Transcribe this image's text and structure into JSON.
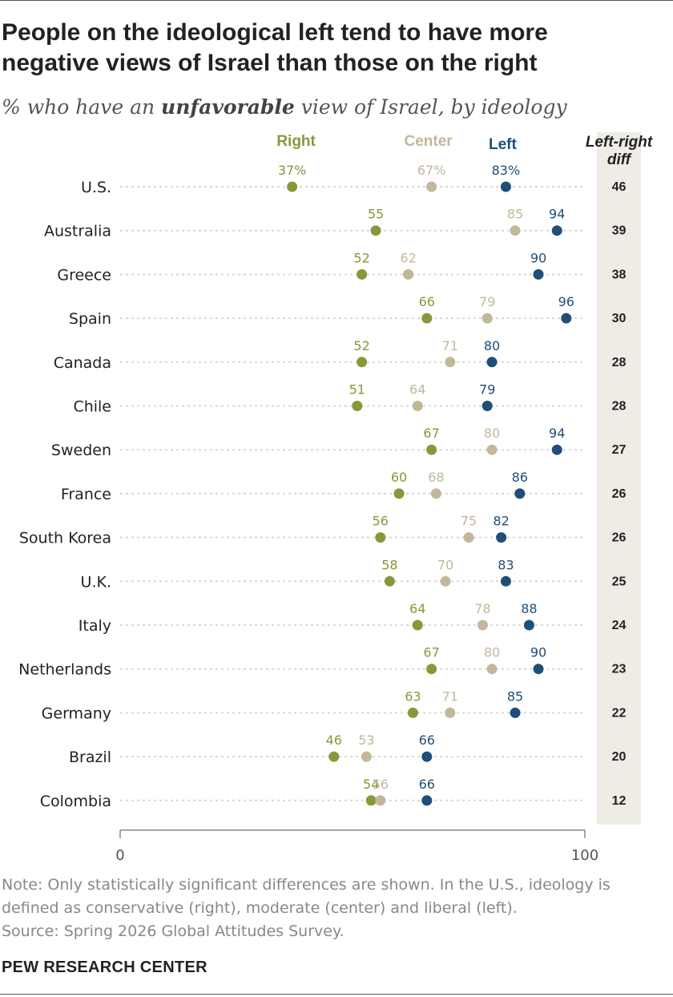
{
  "title": "People on the ideological left tend to have more negative views of Israel than those on the right",
  "subtitle": {
    "prefix": "% who have an",
    "emphasis": "unfavorable",
    "suffix": "view of Israel, by ideology"
  },
  "colors": {
    "right": "#86983a",
    "center": "#c2b79b",
    "left": "#1f4e79",
    "diff_band": "#eeece4",
    "dotted_line": "#d8d8d8",
    "axis": "#888888"
  },
  "chart_data": {
    "type": "dot-plot",
    "series_names": {
      "right": "Right",
      "center": "Center",
      "left": "Left"
    },
    "diff_header": [
      "Left-right",
      "diff"
    ],
    "x_ticks": [
      "0",
      "100"
    ],
    "xlim": [
      0,
      100
    ],
    "rows": [
      {
        "country": "U.S.",
        "right": 37,
        "center": 67,
        "left": 83,
        "diff": 46,
        "pct": true
      },
      {
        "country": "Australia",
        "right": 55,
        "center": 85,
        "left": 94,
        "diff": 39
      },
      {
        "country": "Greece",
        "right": 52,
        "center": 62,
        "left": 90,
        "diff": 38
      },
      {
        "country": "Spain",
        "right": 66,
        "center": 79,
        "left": 96,
        "diff": 30
      },
      {
        "country": "Canada",
        "right": 52,
        "center": 71,
        "left": 80,
        "diff": 28
      },
      {
        "country": "Chile",
        "right": 51,
        "center": 64,
        "left": 79,
        "diff": 28
      },
      {
        "country": "Sweden",
        "right": 67,
        "center": 80,
        "left": 94,
        "diff": 27
      },
      {
        "country": "France",
        "right": 60,
        "center": 68,
        "left": 86,
        "diff": 26
      },
      {
        "country": "South Korea",
        "right": 56,
        "center": 75,
        "left": 82,
        "diff": 26
      },
      {
        "country": "U.K.",
        "right": 58,
        "center": 70,
        "left": 83,
        "diff": 25
      },
      {
        "country": "Italy",
        "right": 64,
        "center": 78,
        "left": 88,
        "diff": 24
      },
      {
        "country": "Netherlands",
        "right": 67,
        "center": 80,
        "left": 90,
        "diff": 23
      },
      {
        "country": "Germany",
        "right": 63,
        "center": 71,
        "left": 85,
        "diff": 22
      },
      {
        "country": "Brazil",
        "right": 46,
        "center": 53,
        "left": 66,
        "diff": 20
      },
      {
        "country": "Colombia",
        "right": 54,
        "center": 56,
        "left": 66,
        "diff": 12
      }
    ]
  },
  "note_lines": [
    "Note: Only statistically significant differences are shown. In the U.S., ideology is",
    "defined as conservative (right), moderate (center) and liberal (left).",
    "Source: Spring 2026 Global Attitudes Survey."
  ],
  "brand": "PEW RESEARCH CENTER"
}
